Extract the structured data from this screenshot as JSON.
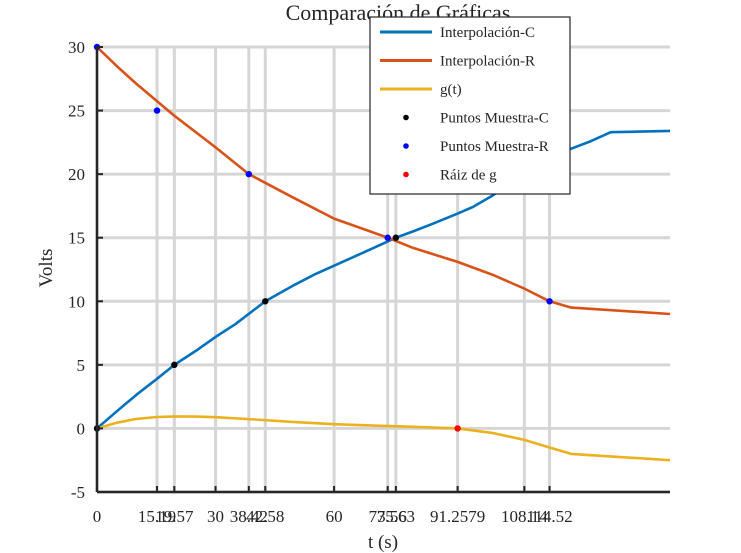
{
  "chart_data": {
    "type": "line",
    "title": "Comparación de Gráficas",
    "xlabel": "t (s)",
    "ylabel": "Volts",
    "xlim": [
      0,
      145
    ],
    "ylim": [
      -5,
      30
    ],
    "grid": true,
    "legend_position": "top-center",
    "x_ticks": [
      0,
      15.19,
      19.57,
      30,
      38.42,
      42.58,
      60,
      73.56,
      75.63,
      91.2579,
      108.14,
      114.52
    ],
    "x_tick_labels": [
      "0",
      "15.19",
      "19.57",
      "30",
      "38.42",
      "42.58",
      "60",
      "73.56",
      "75.63",
      "91.2579",
      "108.14",
      "114.52"
    ],
    "y_ticks": [
      -5,
      0,
      5,
      10,
      15,
      20,
      25,
      30
    ],
    "y_tick_labels": [
      "-5",
      "0",
      "5",
      "10",
      "15",
      "20",
      "25",
      "30"
    ],
    "colors": {
      "interp_c": "#0072BD",
      "interp_r": "#D95319",
      "g": "#EDB120",
      "samples_c": "#000000",
      "samples_r": "#0000FF",
      "root": "#FF0000"
    },
    "series": [
      {
        "name": "Interpolación-C",
        "kind": "line",
        "color": "#0072BD",
        "x": [
          0,
          5,
          10,
          15.19,
          19.57,
          25,
          30,
          35,
          42.58,
          50,
          55,
          60,
          65,
          70,
          75.63,
          80,
          85,
          91.2579,
          95,
          100,
          108.14,
          115,
          120,
          125,
          130,
          145
        ],
        "y": [
          0,
          1.35,
          2.65,
          3.9,
          5.0,
          6.1,
          7.2,
          8.2,
          10.0,
          11.3,
          12.1,
          12.8,
          13.5,
          14.2,
          15.0,
          15.5,
          16.1,
          16.9,
          17.4,
          18.3,
          20.0,
          21.3,
          22.0,
          22.6,
          23.3,
          23.4
        ]
      },
      {
        "name": "Interpolación-R",
        "kind": "line",
        "color": "#D95319",
        "x": [
          0,
          5,
          10,
          19.57,
          30,
          38.42,
          50,
          60,
          73.56,
          80,
          91.2579,
          100,
          108.14,
          114.52,
          120,
          145
        ],
        "y": [
          30,
          28.5,
          27.1,
          24.6,
          22.1,
          20.0,
          18.1,
          16.5,
          15.0,
          14.2,
          13.1,
          12.1,
          11.0,
          10.0,
          9.5,
          9.0
        ]
      },
      {
        "name": "g(t)",
        "kind": "line",
        "color": "#EDB120",
        "x": [
          0,
          5,
          10,
          15.19,
          20,
          25,
          30,
          40,
          50,
          60,
          70,
          80,
          91.2579,
          100,
          108.14,
          114.52,
          120,
          145
        ],
        "y": [
          0,
          0.45,
          0.75,
          0.9,
          0.95,
          0.93,
          0.88,
          0.7,
          0.5,
          0.33,
          0.22,
          0.13,
          0.0,
          -0.35,
          -0.9,
          -1.5,
          -2.0,
          -2.5
        ]
      },
      {
        "name": "Puntos Muestra-C",
        "kind": "points",
        "color": "#000000",
        "x": [
          0,
          19.57,
          42.58,
          75.63,
          108.14
        ],
        "y": [
          0,
          5,
          10,
          15,
          20
        ]
      },
      {
        "name": "Puntos Muestra-R",
        "kind": "points",
        "color": "#0000FF",
        "x": [
          0,
          15.19,
          38.42,
          73.56,
          114.52
        ],
        "y": [
          30,
          25,
          20,
          15,
          10
        ]
      },
      {
        "name": "Ráiz de g",
        "kind": "points",
        "color": "#FF0000",
        "x": [
          91.2579
        ],
        "y": [
          0
        ]
      }
    ]
  }
}
